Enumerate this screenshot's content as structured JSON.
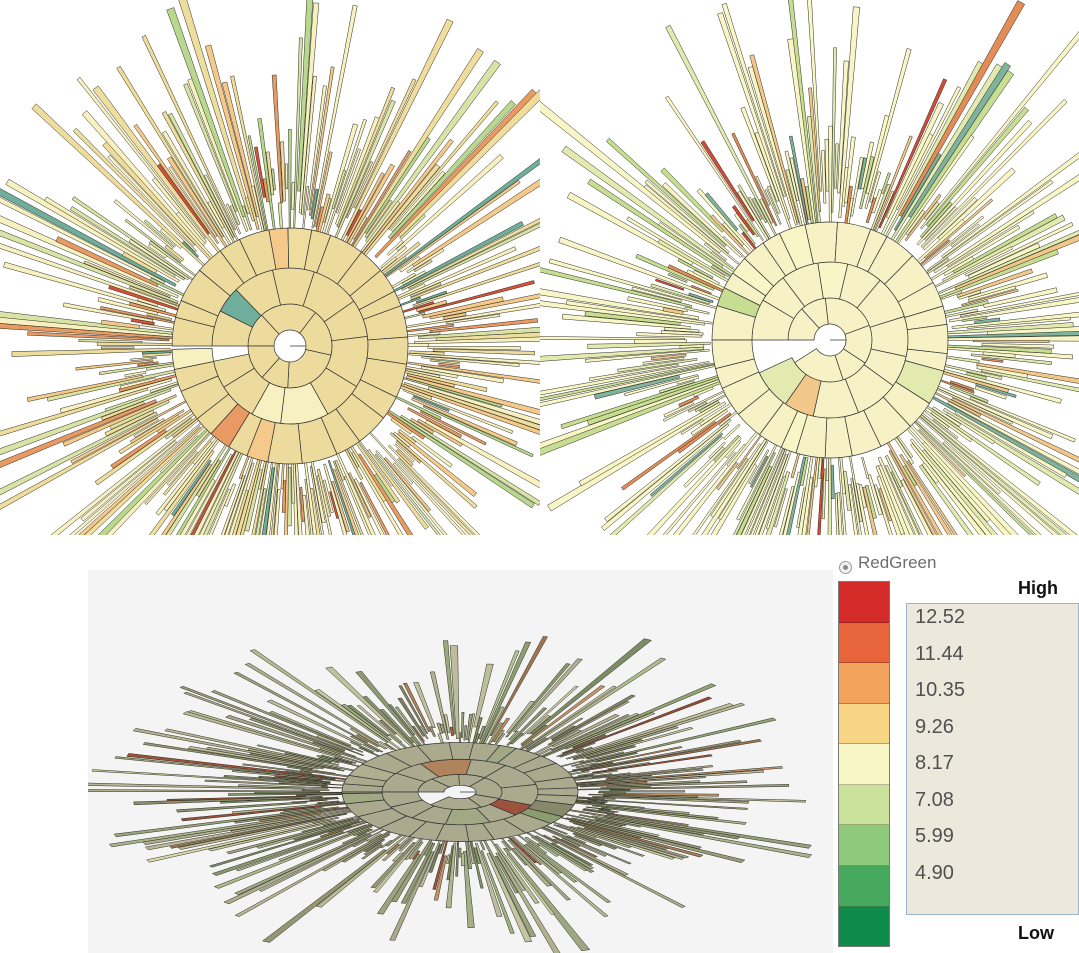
{
  "legend": {
    "scheme_label": "RedGreen",
    "high_label": "High",
    "low_label": "Low",
    "values": [
      "12.52",
      "11.44",
      "10.35",
      "9.26",
      "8.17",
      "7.08",
      "5.99",
      "4.90"
    ],
    "colors": [
      "#d42a28",
      "#e8643b",
      "#f4a35c",
      "#f8d584",
      "#f8f6c4",
      "#c9e19a",
      "#8fca7a",
      "#46a95e",
      "#0e8a4a"
    ]
  },
  "panels": {
    "top_left": {
      "view": "2D radial sunburst"
    },
    "top_right": {
      "view": "2D radial sunburst"
    },
    "bottom": {
      "view": "3D extruded radial sunburst"
    }
  }
}
